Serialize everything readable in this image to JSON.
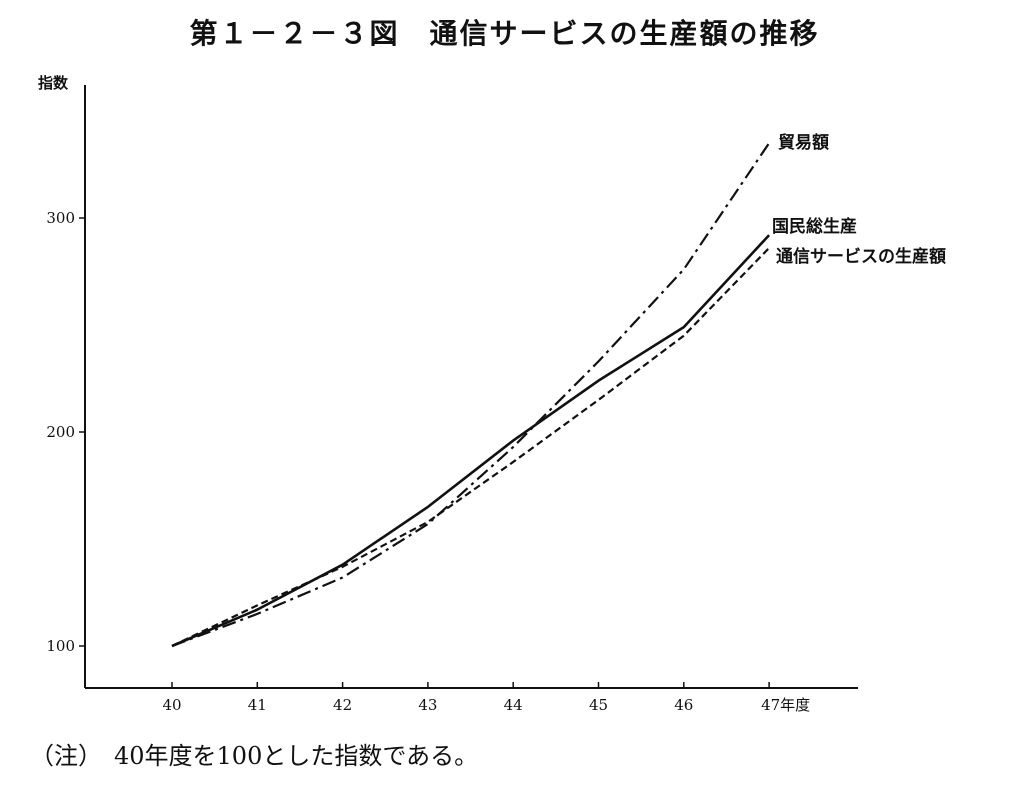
{
  "chart_data": {
    "type": "line",
    "title": "第１－２－３図　通信サービスの生産額の推移",
    "ylabel": "指数",
    "x": [
      "40",
      "41",
      "42",
      "43",
      "44",
      "45",
      "46",
      "47"
    ],
    "x_last_suffix": "年度",
    "ylim": [
      80,
      350
    ],
    "yticks": [
      100,
      200,
      300
    ],
    "series": [
      {
        "name": "貿易額",
        "style": "dashdot",
        "values": [
          100,
          115,
          132,
          157,
          193,
          233,
          276,
          335
        ]
      },
      {
        "name": "国民総生産",
        "style": "solid",
        "values": [
          100,
          117,
          138,
          165,
          196,
          224,
          249,
          292
        ]
      },
      {
        "name": "通信サービスの生産額",
        "style": "dashed",
        "values": [
          100,
          119,
          137,
          158,
          186,
          215,
          245,
          286
        ]
      }
    ],
    "note": "（注）　40年度を100とした指数である。"
  }
}
